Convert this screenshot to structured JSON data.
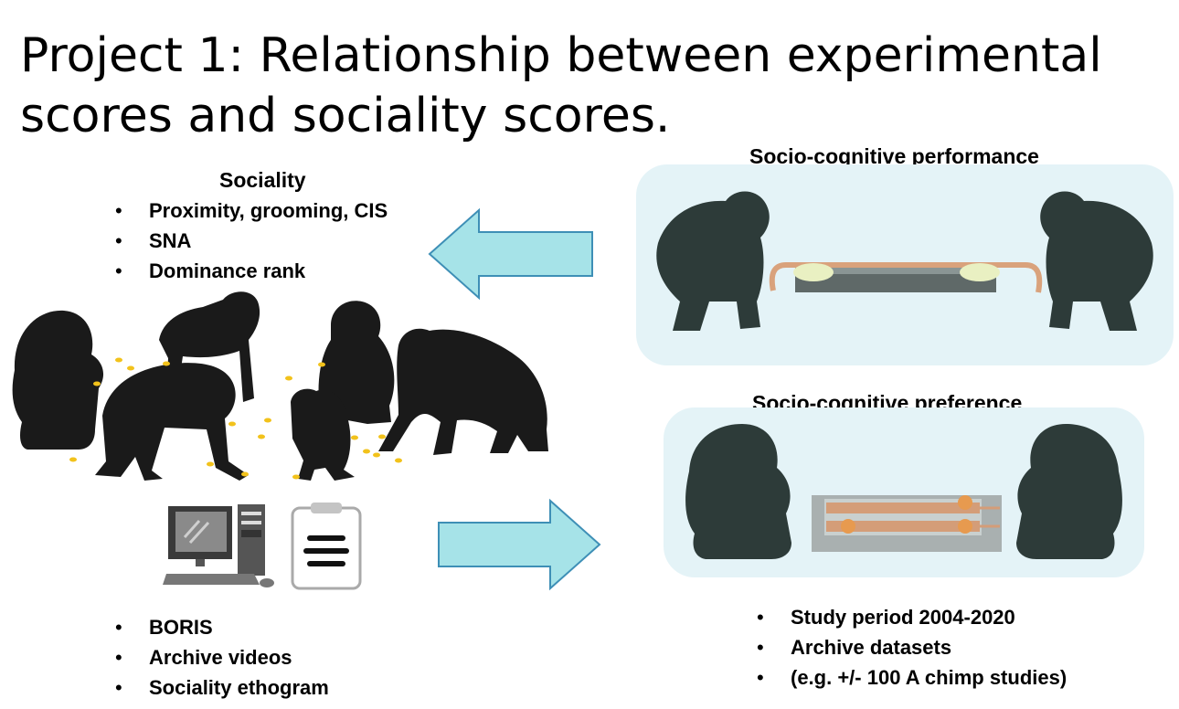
{
  "slide": {
    "title_line1": "Project 1: Relationship between experimental",
    "title_line2": "scores and sociality scores."
  },
  "sociality": {
    "heading": "Sociality",
    "items": [
      "Proximity, grooming, CIS",
      "SNA",
      "Dominance rank"
    ]
  },
  "methods": {
    "items": [
      "BORIS",
      "Archive videos",
      "Sociality ethogram"
    ]
  },
  "performance": {
    "heading": "Socio-cognitive performance"
  },
  "preference": {
    "heading": "Socio-cognitive preference"
  },
  "archive": {
    "items": [
      "Study period 2004-2020",
      "Archive datasets",
      "(e.g. +/- 100 A chimp studies)"
    ]
  },
  "colors": {
    "arrow_fill": "#a6e3e8",
    "arrow_stroke": "#3e8fb6",
    "panel_bg": "#e4f3f7",
    "silhouette": "#1a1a1a",
    "silhouette_experiment": "#2d3b39",
    "food": "#f2c21b"
  },
  "icons": [
    "chimpanzee-silhouette",
    "computer-icon",
    "clipboard-icon",
    "arrow-left-icon",
    "arrow-right-icon",
    "pulling-apparatus",
    "token-tray-apparatus"
  ]
}
